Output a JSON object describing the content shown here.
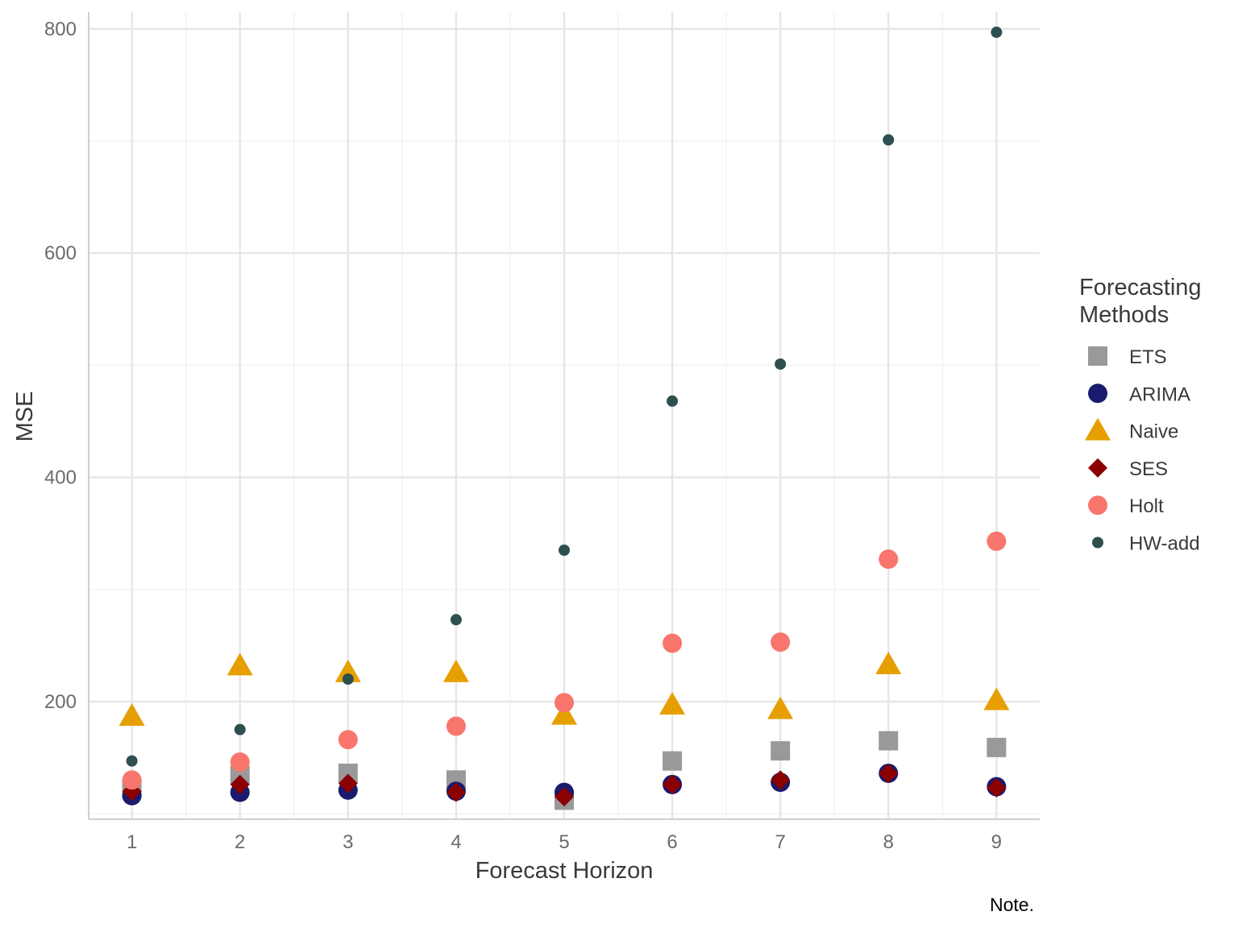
{
  "chart_data": {
    "type": "scatter",
    "xlabel": "Forecast Horizon",
    "ylabel": "MSE",
    "caption": "Note.",
    "legend_title": [
      "Forecasting",
      "Methods"
    ],
    "legend_position": "right",
    "grid": true,
    "x": [
      1,
      2,
      3,
      4,
      5,
      6,
      7,
      8,
      9
    ],
    "xlim": [
      0.6,
      9.4
    ],
    "ylim": [
      95,
      815
    ],
    "yticks": [
      200,
      400,
      600,
      800
    ],
    "series": [
      {
        "name": "ETS",
        "shape": "square",
        "color": "#999999",
        "values": [
          122,
          134,
          136,
          130,
          112,
          147,
          156,
          165,
          159
        ]
      },
      {
        "name": "ARIMA",
        "shape": "circle",
        "color": "#1a1a6e",
        "values": [
          116,
          119,
          121,
          120,
          119,
          126,
          128,
          136,
          124
        ]
      },
      {
        "name": "Naive",
        "shape": "triangle",
        "color": "#e69f00",
        "values": [
          187,
          232,
          226,
          226,
          188,
          197,
          193,
          233,
          201
        ]
      },
      {
        "name": "SES",
        "shape": "diamond",
        "color": "#8b0000",
        "values": [
          120,
          126,
          127,
          119,
          115,
          126,
          130,
          136,
          123
        ]
      },
      {
        "name": "Holt",
        "shape": "circle",
        "color": "#f8766d",
        "values": [
          130,
          146,
          166,
          178,
          199,
          252,
          253,
          327,
          343
        ]
      },
      {
        "name": "HW-add",
        "shape": "dot",
        "color": "#2f4f4f",
        "values": [
          147,
          175,
          220,
          273,
          335,
          468,
          501,
          701,
          797
        ]
      }
    ]
  }
}
